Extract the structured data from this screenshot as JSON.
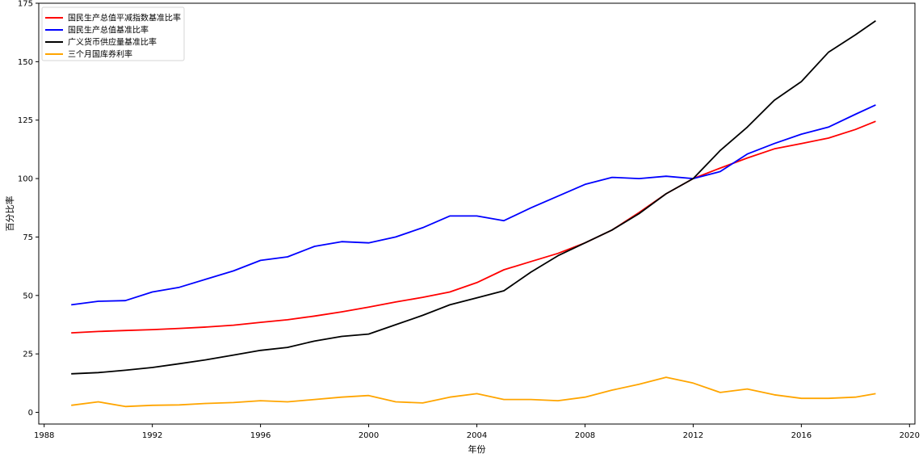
{
  "chart_data": {
    "type": "line",
    "title": "",
    "xlabel": "年份",
    "ylabel": "百分比率",
    "xlim": [
      1987.8,
      2020.2
    ],
    "ylim": [
      -5,
      175
    ],
    "x_ticks": [
      1988,
      1992,
      1996,
      2000,
      2004,
      2008,
      2012,
      2016,
      2020
    ],
    "y_ticks": [
      0,
      25,
      50,
      75,
      100,
      125,
      150,
      175
    ],
    "grid": false,
    "legend_position": "top-left",
    "x": [
      1989,
      1990,
      1991,
      1992,
      1993,
      1994,
      1995,
      1996,
      1997,
      1998,
      1999,
      2000,
      2001,
      2002,
      2003,
      2004,
      2005,
      2006,
      2007,
      2008,
      2009,
      2010,
      2011,
      2012,
      2013,
      2014,
      2015,
      2016,
      2017,
      2018,
      2018.75
    ],
    "series": [
      {
        "name": "国民生产总值平减指数基准比率",
        "color": "#ff0000",
        "values": [
          34,
          34.6,
          35,
          35.4,
          35.9,
          36.5,
          37.3,
          38.5,
          39.6,
          41.2,
          43,
          45,
          47.2,
          49.2,
          51.5,
          55.5,
          61,
          64.5,
          68,
          72.5,
          78,
          85.5,
          93.5,
          100,
          104.5,
          108.8,
          112.7,
          115,
          117.3,
          121,
          124.5
        ]
      },
      {
        "name": "国民生产总值基准比率",
        "color": "#0000ff",
        "values": [
          46,
          47.5,
          47.8,
          51.5,
          53.5,
          57,
          60.5,
          65,
          66.5,
          71,
          73,
          72.5,
          75,
          79,
          84,
          84,
          82,
          87.5,
          92.5,
          97.5,
          100.5,
          100,
          101,
          100,
          103,
          110.5,
          115,
          119,
          122,
          127.5,
          131.5
        ]
      },
      {
        "name": "广义货币供应量基准比率",
        "color": "#000000",
        "values": [
          16.5,
          17,
          18,
          19.2,
          20.8,
          22.5,
          24.5,
          26.5,
          27.8,
          30.5,
          32.5,
          33.5,
          37.5,
          41.5,
          46,
          49,
          52,
          60,
          67,
          72.5,
          78,
          85,
          93.5,
          100,
          112,
          122,
          133.5,
          141.5,
          154,
          161.5,
          167.5
        ]
      },
      {
        "name": "三个月国库券利率",
        "color": "#ffa500",
        "values": [
          3,
          4.5,
          2.5,
          3,
          3.2,
          3.8,
          4.2,
          5,
          4.5,
          5.5,
          6.5,
          7.2,
          4.5,
          4,
          6.5,
          8,
          5.5,
          5.5,
          5,
          6.5,
          9.5,
          12,
          15,
          12.5,
          8.5,
          10,
          7.5,
          6,
          6,
          6.5,
          8
        ]
      }
    ]
  }
}
